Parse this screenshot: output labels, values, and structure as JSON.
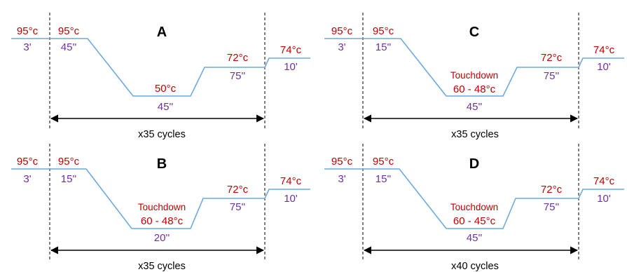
{
  "colors": {
    "temperature": "#c00000",
    "time": "#7030a0",
    "profile_line": "#6fa8dc",
    "guides": "#000000"
  },
  "panels": [
    {
      "letter": "A",
      "initial": {
        "temp": "95°c",
        "time": "3'"
      },
      "denature": {
        "temp": "95°c",
        "time": "45''"
      },
      "anneal_note": "",
      "anneal": {
        "temp": "50°c",
        "time": "45''"
      },
      "extend": {
        "temp": "72°c",
        "time": "75''"
      },
      "final": {
        "temp": "74°c",
        "time": "10'"
      },
      "cycles": "x35 cycles"
    },
    {
      "letter": "B",
      "initial": {
        "temp": "95°c",
        "time": "3'"
      },
      "denature": {
        "temp": "95°c",
        "time": "15''"
      },
      "anneal_note": "Touchdown",
      "anneal": {
        "temp": "60 - 48°c",
        "time": "20''"
      },
      "extend": {
        "temp": "72°c",
        "time": "75''"
      },
      "final": {
        "temp": "74°c",
        "time": "10'"
      },
      "cycles": "x35 cycles"
    },
    {
      "letter": "C",
      "initial": {
        "temp": "95°c",
        "time": "3'"
      },
      "denature": {
        "temp": "95°c",
        "time": "15''"
      },
      "anneal_note": "Touchdown",
      "anneal": {
        "temp": "60 - 48°c",
        "time": "45''"
      },
      "extend": {
        "temp": "72°c",
        "time": "75''"
      },
      "final": {
        "temp": "74°c",
        "time": "10'"
      },
      "cycles": "x35 cycles"
    },
    {
      "letter": "D",
      "initial": {
        "temp": "95°c",
        "time": "3'"
      },
      "denature": {
        "temp": "95°c",
        "time": "15''"
      },
      "anneal_note": "Touchdown",
      "anneal": {
        "temp": "60 - 45°c",
        "time": "45''"
      },
      "extend": {
        "temp": "72°c",
        "time": "75''"
      },
      "final": {
        "temp": "74°c",
        "time": "10'"
      },
      "cycles": "x40 cycles"
    }
  ]
}
